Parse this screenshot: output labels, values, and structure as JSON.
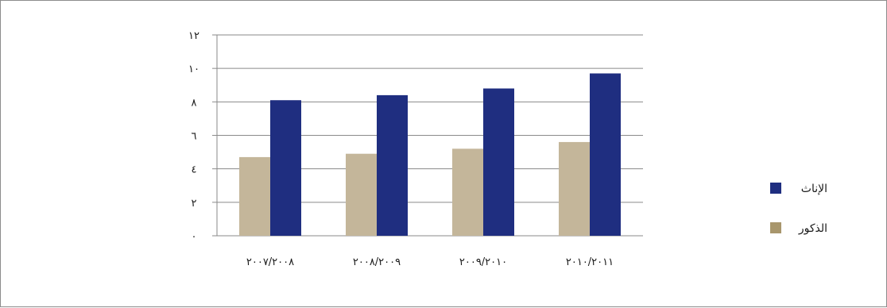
{
  "chart_data": {
    "type": "bar",
    "categories": [
      "٢٠٠٧/٢٠٠٨",
      "٢٠٠٨/٢٠٠٩",
      "٢٠٠٩/٢٠١٠",
      "٢٠١٠/٢٠١١"
    ],
    "series": [
      {
        "name": "الذكور",
        "values": [
          4.7,
          4.9,
          5.2,
          5.6
        ],
        "color": "#c4b69a",
        "legend_color": "#a8966c"
      },
      {
        "name": "الإناث",
        "values": [
          8.1,
          8.4,
          8.8,
          9.7
        ],
        "color": "#1f2e80",
        "legend_color": "#1f2e80"
      }
    ],
    "ylim": [
      0,
      12
    ],
    "yticks": [
      0,
      2,
      4,
      6,
      8,
      10,
      12
    ],
    "ytick_labels": [
      "٠",
      "٢",
      "٤",
      "٦",
      "٨",
      "١٠",
      "١٢"
    ],
    "grid": true,
    "legend": {
      "position": "right",
      "order": [
        "الإناث",
        "الذكور"
      ]
    },
    "title": "",
    "xlabel": "",
    "ylabel": ""
  }
}
